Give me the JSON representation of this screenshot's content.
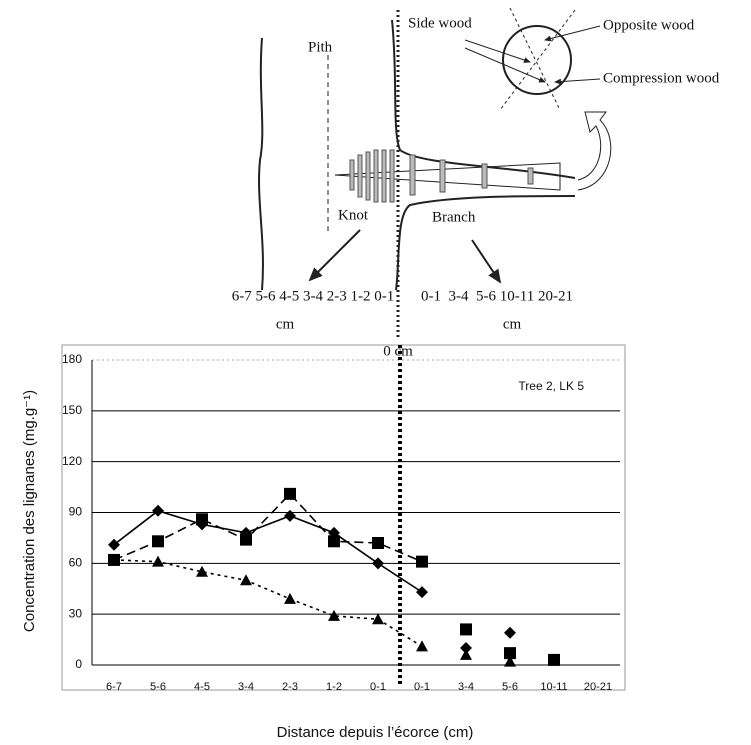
{
  "diagram": {
    "labels": {
      "side_wood": "Side wood",
      "opposite_wood": "Opposite wood",
      "compression_wood": "Compression wood",
      "pith": "Pith",
      "knot": "Knot",
      "branch": "Branch",
      "knot_scale": "6-7 5-6 4-5 3-4 2-3 1-2 0-1",
      "knot_unit": "cm",
      "branch_scale": "0-1  3-4  5-6 10-11 20-21",
      "branch_unit": "cm",
      "origin": "0 cm"
    }
  },
  "chart_data": {
    "type": "line",
    "annotation": "Tree 2, LK 5",
    "y_label": "Concentration des lignanes (mg.g⁻¹)",
    "x_label": "Distance depuis l’écorce (cm)",
    "categories": [
      "6-7",
      "5-6",
      "4-5",
      "3-4",
      "2-3",
      "1-2",
      "0-1",
      "0-1",
      "3-4",
      "5-6",
      "10-11",
      "20-21"
    ],
    "ylim": [
      0,
      180
    ],
    "yticks": [
      0,
      30,
      60,
      90,
      120,
      150,
      180
    ],
    "grid": true,
    "series": [
      {
        "color": "#000000",
        "marker": "diamond",
        "dash": "solid",
        "values": [
          71,
          91,
          83,
          78,
          88,
          78,
          60,
          43,
          null,
          null,
          null,
          null
        ]
      },
      {
        "color": "#000000",
        "marker": "square",
        "dash": "dashed",
        "values": [
          62,
          73,
          86,
          74,
          101,
          73,
          72,
          61,
          null,
          null,
          null,
          null
        ]
      },
      {
        "color": "#000000",
        "marker": "triangle",
        "dash": "dotted",
        "values": [
          62,
          61,
          55,
          50,
          39,
          29,
          27,
          11,
          null,
          null,
          null,
          null
        ]
      },
      {
        "color": "#000000",
        "marker": "diamond",
        "dash": "none",
        "values": [
          null,
          null,
          null,
          null,
          null,
          null,
          null,
          null,
          10,
          19,
          null,
          null
        ]
      },
      {
        "color": "#000000",
        "marker": "square",
        "dash": "none",
        "values": [
          null,
          null,
          null,
          null,
          null,
          null,
          null,
          null,
          21,
          7,
          3,
          null
        ]
      },
      {
        "color": "#000000",
        "marker": "triangle",
        "dash": "none",
        "values": [
          null,
          null,
          null,
          null,
          null,
          null,
          null,
          null,
          6,
          2,
          null,
          null
        ]
      }
    ]
  }
}
